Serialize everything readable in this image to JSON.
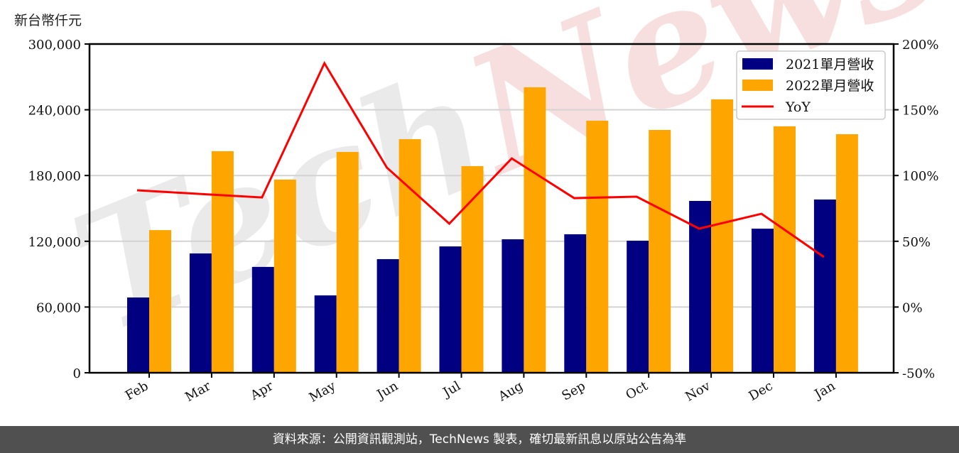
{
  "chart_data": {
    "type": "bar",
    "title": "",
    "ylabel": "新台幣仟元",
    "xlabel": "",
    "categories": [
      "Feb",
      "Mar",
      "Apr",
      "May",
      "Jun",
      "Jul",
      "Aug",
      "Sep",
      "Oct",
      "Nov",
      "Dec",
      "Jan"
    ],
    "series": [
      {
        "name": "2021單月營收",
        "type": "bar",
        "axis": "left",
        "color": "#000080",
        "values": [
          68700,
          108900,
          96600,
          70600,
          103700,
          115300,
          121800,
          126400,
          120500,
          156800,
          131500,
          158100
        ]
      },
      {
        "name": "2022單月營收",
        "type": "bar",
        "axis": "left",
        "color": "#FFA500",
        "values": [
          130200,
          202200,
          176300,
          201500,
          213200,
          188600,
          260500,
          230000,
          221600,
          249500,
          224900,
          217700
        ]
      },
      {
        "name": "YoY",
        "type": "line",
        "axis": "right",
        "color": "#FF0000",
        "values": [
          88.8,
          86.0,
          83.3,
          185.4,
          106.0,
          63.4,
          113.0,
          82.8,
          83.9,
          59.6,
          70.9,
          38.0
        ]
      }
    ],
    "ylim": [
      0,
      300000
    ],
    "yticks": [
      "0",
      "60,000",
      "120,000",
      "180,000",
      "240,000",
      "300,000"
    ],
    "y2lim": [
      -50,
      200
    ],
    "y2ticks": [
      "-50%",
      "0%",
      "50%",
      "100%",
      "150%",
      "200%"
    ],
    "grid": true,
    "legend_position": "upper right"
  },
  "unit_label": "新台幣仟元",
  "legend": [
    {
      "label": "2021單月營收",
      "color": "#000080",
      "kind": "bar"
    },
    {
      "label": "2022單月營收",
      "color": "#FFA500",
      "kind": "bar"
    },
    {
      "label": "YoY",
      "color": "#FF0000",
      "kind": "line"
    }
  ],
  "watermark": "TechNews",
  "footer": "資料來源：公開資訊觀測站，TechNews 製表，確切最新訊息以原站公告為準"
}
